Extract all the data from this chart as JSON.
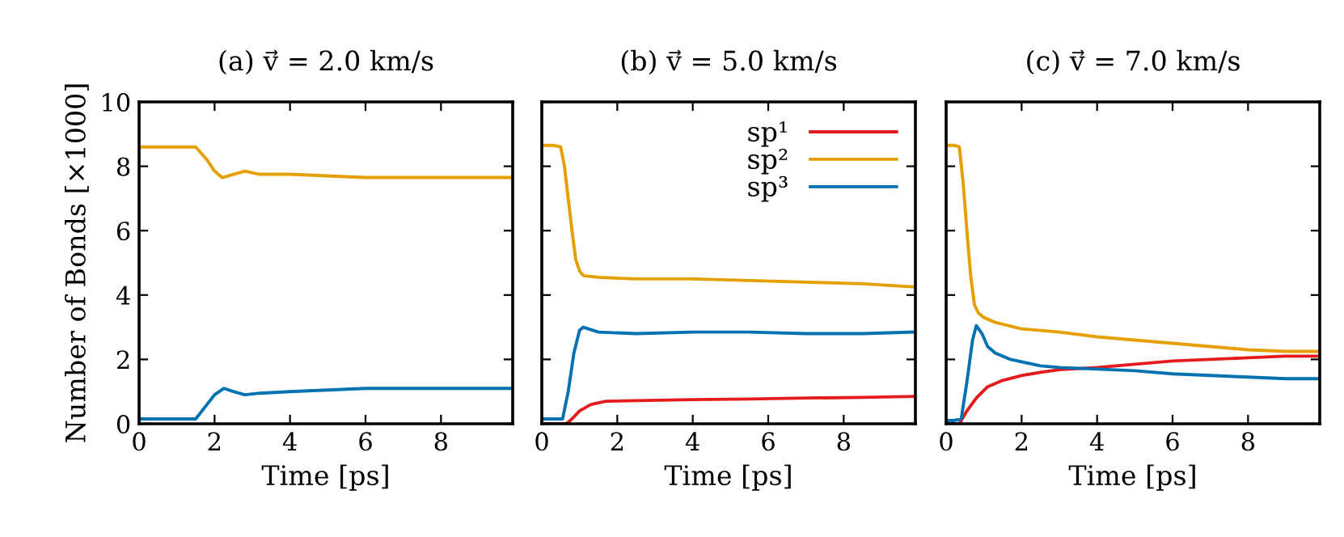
{
  "chart_data": [
    {
      "type": "line",
      "title": "(a) v⃗ = 2.0 km/s",
      "xlabel": "Time [ps]",
      "ylabel": "Number of Bonds [×1000]",
      "xlim": [
        0,
        9.9
      ],
      "ylim": [
        0,
        10
      ],
      "xticks": [
        0,
        2,
        4,
        6,
        8
      ],
      "yticks": [
        0,
        2,
        4,
        6,
        8,
        10
      ],
      "grid": false,
      "legend": false,
      "series": [
        {
          "color": "#e69f00",
          "x": [
            0,
            0.5,
            1.0,
            1.5,
            1.8,
            2.0,
            2.2,
            2.5,
            2.8,
            3.2,
            4,
            5,
            6,
            7,
            8,
            9,
            9.9
          ],
          "values": [
            8.6,
            8.6,
            8.6,
            8.6,
            8.2,
            7.85,
            7.65,
            7.75,
            7.85,
            7.75,
            7.75,
            7.7,
            7.65,
            7.65,
            7.65,
            7.65,
            7.65
          ]
        },
        {
          "color": "#0072b2",
          "x": [
            0,
            0.5,
            1.0,
            1.5,
            1.8,
            2.0,
            2.25,
            2.5,
            2.8,
            3.2,
            4,
            5,
            6,
            7,
            8,
            9,
            9.9
          ],
          "values": [
            0.15,
            0.15,
            0.15,
            0.15,
            0.6,
            0.9,
            1.1,
            1.0,
            0.9,
            0.95,
            1.0,
            1.05,
            1.1,
            1.1,
            1.1,
            1.1,
            1.1
          ]
        }
      ]
    },
    {
      "type": "line",
      "title": "(b) v⃗ = 5.0 km/s",
      "xlabel": "Time [ps]",
      "xlim": [
        0,
        9.9
      ],
      "ylim": [
        0,
        10
      ],
      "xticks": [
        0,
        2,
        4,
        6,
        8
      ],
      "yticks": [
        0,
        2,
        4,
        6,
        8,
        10
      ],
      "tick_labels": "x",
      "grid": false,
      "legend": "top right",
      "series": [
        {
          "name": "sp¹",
          "color": "#e41a1c",
          "x": [
            0,
            0.3,
            0.65,
            0.8,
            1.0,
            1.3,
            1.7,
            2.5,
            4,
            5.5,
            7,
            8.5,
            9.9
          ],
          "values": [
            0,
            0,
            0,
            0.15,
            0.4,
            0.6,
            0.7,
            0.72,
            0.75,
            0.77,
            0.8,
            0.82,
            0.85
          ]
        },
        {
          "name": "sp²",
          "color": "#e69f00",
          "x": [
            0,
            0.3,
            0.5,
            0.6,
            0.7,
            0.8,
            0.9,
            1.0,
            1.1,
            1.5,
            2.5,
            4,
            5.5,
            7,
            8.5,
            9.9
          ],
          "values": [
            8.65,
            8.65,
            8.6,
            8.0,
            7.0,
            6.0,
            5.1,
            4.75,
            4.6,
            4.55,
            4.5,
            4.5,
            4.45,
            4.4,
            4.35,
            4.25
          ]
        },
        {
          "name": "sp³",
          "color": "#0072b2",
          "x": [
            0,
            0.3,
            0.55,
            0.7,
            0.85,
            1.0,
            1.1,
            1.5,
            2.5,
            4,
            5.5,
            7,
            8.5,
            9.9
          ],
          "values": [
            0.15,
            0.15,
            0.15,
            1.0,
            2.2,
            2.9,
            3.0,
            2.85,
            2.8,
            2.85,
            2.85,
            2.8,
            2.8,
            2.85
          ]
        }
      ]
    },
    {
      "type": "line",
      "title": "(c) v⃗ = 7.0 km/s",
      "xlabel": "Time [ps]",
      "xlim": [
        0,
        9.9
      ],
      "ylim": [
        0,
        10
      ],
      "xticks": [
        0,
        2,
        4,
        6,
        8
      ],
      "yticks": [
        0,
        2,
        4,
        6,
        8,
        10
      ],
      "tick_labels": "x",
      "grid": false,
      "legend": false,
      "series": [
        {
          "color": "#e41a1c",
          "x": [
            0,
            0.2,
            0.35,
            0.55,
            0.8,
            1.1,
            1.5,
            2,
            2.5,
            3,
            4,
            5,
            6,
            7,
            8,
            9,
            9.9
          ],
          "values": [
            0,
            0,
            0,
            0.4,
            0.8,
            1.15,
            1.35,
            1.5,
            1.6,
            1.68,
            1.75,
            1.85,
            1.95,
            2.0,
            2.05,
            2.1,
            2.1
          ]
        },
        {
          "color": "#e69f00",
          "x": [
            0,
            0.2,
            0.35,
            0.45,
            0.55,
            0.65,
            0.75,
            0.85,
            1.0,
            1.3,
            2,
            3,
            4,
            5,
            6,
            7,
            8,
            9,
            9.9
          ],
          "values": [
            8.65,
            8.65,
            8.6,
            7.5,
            6.0,
            4.6,
            3.7,
            3.45,
            3.3,
            3.15,
            2.95,
            2.85,
            2.7,
            2.6,
            2.5,
            2.4,
            2.3,
            2.25,
            2.25
          ]
        },
        {
          "color": "#0072b2",
          "x": [
            0,
            0.2,
            0.4,
            0.55,
            0.7,
            0.8,
            0.95,
            1.1,
            1.3,
            1.7,
            2.5,
            3,
            4,
            5,
            6,
            7,
            8,
            9,
            9.9
          ],
          "values": [
            0.1,
            0.1,
            0.15,
            1.3,
            2.6,
            3.05,
            2.8,
            2.4,
            2.2,
            2.0,
            1.8,
            1.75,
            1.7,
            1.65,
            1.55,
            1.5,
            1.45,
            1.4,
            1.4
          ]
        }
      ]
    }
  ]
}
